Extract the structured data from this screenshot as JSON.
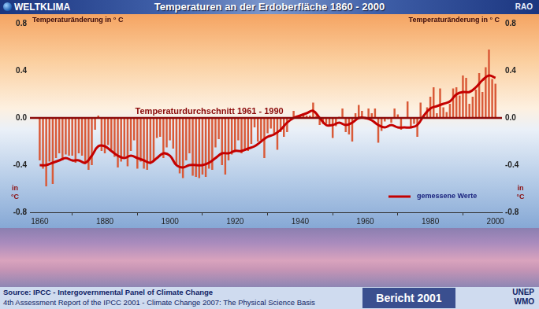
{
  "header": {
    "logo": "WELTKLIMA",
    "corner": "RAO"
  },
  "chart_data": {
    "type": "bar",
    "title": "Temperaturen an der Erdoberfläche 1860 - 2000",
    "y_label": "Temperaturänderung in ° C",
    "y_unit": "in °C",
    "x": [
      1860,
      1861,
      1862,
      1863,
      1864,
      1865,
      1866,
      1867,
      1868,
      1869,
      1870,
      1871,
      1872,
      1873,
      1874,
      1875,
      1876,
      1877,
      1878,
      1879,
      1880,
      1881,
      1882,
      1883,
      1884,
      1885,
      1886,
      1887,
      1888,
      1889,
      1890,
      1891,
      1892,
      1893,
      1894,
      1895,
      1896,
      1897,
      1898,
      1899,
      1900,
      1901,
      1902,
      1903,
      1904,
      1905,
      1906,
      1907,
      1908,
      1909,
      1910,
      1911,
      1912,
      1913,
      1914,
      1915,
      1916,
      1917,
      1918,
      1919,
      1920,
      1921,
      1922,
      1923,
      1924,
      1925,
      1926,
      1927,
      1928,
      1929,
      1930,
      1931,
      1932,
      1933,
      1934,
      1935,
      1936,
      1937,
      1938,
      1939,
      1940,
      1941,
      1942,
      1943,
      1944,
      1945,
      1946,
      1947,
      1948,
      1949,
      1950,
      1951,
      1952,
      1953,
      1954,
      1955,
      1956,
      1957,
      1958,
      1959,
      1960,
      1961,
      1962,
      1963,
      1964,
      1965,
      1966,
      1967,
      1968,
      1969,
      1970,
      1971,
      1972,
      1973,
      1974,
      1975,
      1976,
      1977,
      1978,
      1979,
      1980,
      1981,
      1982,
      1983,
      1984,
      1985,
      1986,
      1987,
      1988,
      1989,
      1990,
      1991,
      1992,
      1993,
      1994,
      1995,
      1996,
      1997,
      1998,
      1999,
      2000
    ],
    "series": [
      {
        "type": "bar",
        "color": "#d95a38",
        "values": [
          -0.36,
          -0.43,
          -0.58,
          -0.37,
          -0.56,
          -0.34,
          -0.3,
          -0.36,
          -0.31,
          -0.32,
          -0.32,
          -0.38,
          -0.3,
          -0.32,
          -0.39,
          -0.44,
          -0.4,
          -0.1,
          0.02,
          -0.28,
          -0.3,
          -0.23,
          -0.27,
          -0.33,
          -0.42,
          -0.37,
          -0.33,
          -0.41,
          -0.28,
          -0.19,
          -0.43,
          -0.37,
          -0.43,
          -0.44,
          -0.39,
          -0.36,
          -0.17,
          -0.16,
          -0.34,
          -0.25,
          -0.19,
          -0.26,
          -0.4,
          -0.47,
          -0.51,
          -0.36,
          -0.3,
          -0.49,
          -0.5,
          -0.51,
          -0.48,
          -0.5,
          -0.43,
          -0.44,
          -0.25,
          -0.18,
          -0.4,
          -0.48,
          -0.36,
          -0.31,
          -0.28,
          -0.19,
          -0.3,
          -0.28,
          -0.28,
          -0.22,
          -0.08,
          -0.2,
          -0.19,
          -0.34,
          -0.13,
          -0.09,
          -0.14,
          -0.27,
          -0.12,
          -0.16,
          -0.12,
          0.0,
          0.06,
          0.0,
          0.02,
          0.04,
          0.02,
          0.02,
          0.13,
          0.02,
          -0.06,
          -0.05,
          -0.05,
          -0.07,
          -0.17,
          -0.07,
          0.01,
          0.08,
          -0.12,
          -0.14,
          -0.2,
          0.04,
          0.11,
          0.06,
          -0.01,
          0.08,
          0.04,
          0.08,
          -0.21,
          -0.11,
          -0.03,
          -0.01,
          -0.04,
          0.08,
          0.03,
          -0.1,
          0.0,
          0.14,
          -0.08,
          -0.05,
          -0.16,
          0.13,
          0.02,
          0.09,
          0.18,
          0.26,
          0.04,
          0.25,
          0.09,
          0.05,
          0.12,
          0.25,
          0.26,
          0.19,
          0.36,
          0.34,
          0.12,
          0.18,
          0.24,
          0.38,
          0.22,
          0.43,
          0.58,
          0.33,
          0.29
        ]
      },
      {
        "type": "line",
        "name": "gemessene Werte",
        "color": "#c40000",
        "x": [
          1860,
          1862,
          1864,
          1866,
          1868,
          1870,
          1872,
          1874,
          1876,
          1878,
          1880,
          1882,
          1884,
          1886,
          1888,
          1890,
          1892,
          1894,
          1896,
          1898,
          1900,
          1902,
          1904,
          1906,
          1908,
          1910,
          1912,
          1914,
          1916,
          1918,
          1920,
          1922,
          1924,
          1926,
          1928,
          1930,
          1932,
          1934,
          1936,
          1938,
          1940,
          1942,
          1944,
          1946,
          1948,
          1950,
          1952,
          1954,
          1956,
          1958,
          1960,
          1962,
          1964,
          1966,
          1968,
          1970,
          1972,
          1974,
          1976,
          1978,
          1980,
          1982,
          1984,
          1986,
          1988,
          1990,
          1992,
          1994,
          1996,
          1998,
          2000
        ],
        "values": [
          -0.4,
          -0.4,
          -0.38,
          -0.36,
          -0.34,
          -0.36,
          -0.36,
          -0.38,
          -0.32,
          -0.24,
          -0.24,
          -0.28,
          -0.32,
          -0.34,
          -0.32,
          -0.34,
          -0.36,
          -0.38,
          -0.34,
          -0.3,
          -0.32,
          -0.4,
          -0.42,
          -0.4,
          -0.4,
          -0.4,
          -0.38,
          -0.34,
          -0.3,
          -0.3,
          -0.28,
          -0.28,
          -0.26,
          -0.24,
          -0.2,
          -0.16,
          -0.14,
          -0.1,
          -0.04,
          0.0,
          0.02,
          0.04,
          0.06,
          0.0,
          -0.06,
          -0.06,
          -0.04,
          -0.06,
          -0.04,
          0.0,
          0.0,
          -0.02,
          -0.06,
          -0.08,
          -0.06,
          -0.08,
          -0.08,
          -0.08,
          -0.06,
          0.02,
          0.08,
          0.1,
          0.12,
          0.14,
          0.2,
          0.22,
          0.22,
          0.26,
          0.32,
          0.36,
          0.34
        ]
      }
    ],
    "annotations": [
      {
        "text": "Temperaturdurchschnitt 1961 - 1990",
        "y": 0
      }
    ],
    "xlim": [
      1857,
      2002
    ],
    "xticks": [
      1860,
      1880,
      1900,
      1920,
      1940,
      1960,
      1980,
      2000
    ],
    "ylim": [
      -0.8,
      0.8
    ],
    "yticks": [
      -0.8,
      -0.4,
      {
        "value": 0,
        "label": "0.0"
      },
      0.4,
      0.8
    ],
    "grid": false,
    "legend": "lower right"
  },
  "footer": {
    "source": "Source: IPCC - Intergovernmental Panel of Climate Change",
    "report": "4th Assessment Report of the IPCC 2001 - Climate Change 2007: The Physical Science Basis",
    "badge": "Bericht 2001",
    "org": [
      "UNEP",
      "WMO"
    ]
  }
}
